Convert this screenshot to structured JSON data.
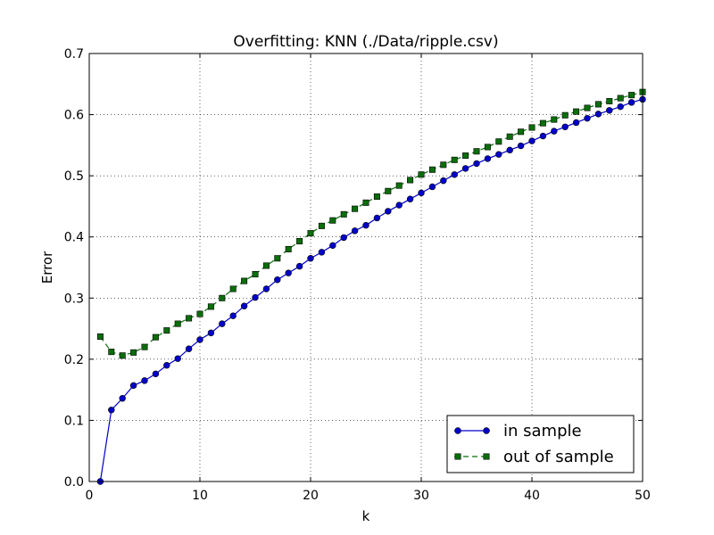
{
  "chart_data": {
    "type": "line",
    "title": "Overfitting: KNN (./Data/ripple.csv)",
    "xlabel": "k",
    "ylabel": "Error",
    "xlim": [
      0,
      50
    ],
    "ylim": [
      0.0,
      0.7
    ],
    "xticks": [
      0,
      10,
      20,
      30,
      40,
      50
    ],
    "yticks": [
      0.0,
      0.1,
      0.2,
      0.3,
      0.4,
      0.5,
      0.6,
      0.7
    ],
    "ytick_labels": [
      "0.0",
      "0.1",
      "0.2",
      "0.3",
      "0.4",
      "0.5",
      "0.6",
      "0.7"
    ],
    "grid": true,
    "legend_position": "lower-right",
    "x": [
      1,
      2,
      3,
      4,
      5,
      6,
      7,
      8,
      9,
      10,
      11,
      12,
      13,
      14,
      15,
      16,
      17,
      18,
      19,
      20,
      21,
      22,
      23,
      24,
      25,
      26,
      27,
      28,
      29,
      30,
      31,
      32,
      33,
      34,
      35,
      36,
      37,
      38,
      39,
      40,
      41,
      42,
      43,
      44,
      45,
      46,
      47,
      48,
      49,
      50
    ],
    "series": [
      {
        "name": "in sample",
        "color": "#0000cc",
        "marker": "circle",
        "linestyle": "solid",
        "values": [
          0.0,
          0.117,
          0.136,
          0.157,
          0.165,
          0.176,
          0.19,
          0.201,
          0.217,
          0.232,
          0.243,
          0.258,
          0.271,
          0.287,
          0.301,
          0.315,
          0.33,
          0.341,
          0.352,
          0.365,
          0.375,
          0.386,
          0.399,
          0.41,
          0.419,
          0.431,
          0.442,
          0.452,
          0.462,
          0.472,
          0.482,
          0.492,
          0.502,
          0.512,
          0.52,
          0.528,
          0.535,
          0.542,
          0.549,
          0.557,
          0.565,
          0.573,
          0.58,
          0.587,
          0.594,
          0.601,
          0.607,
          0.613,
          0.62,
          0.625
        ]
      },
      {
        "name": "out of sample",
        "color": "#0a6e0a",
        "marker": "square",
        "linestyle": "dashed",
        "values": [
          0.237,
          0.212,
          0.206,
          0.211,
          0.22,
          0.236,
          0.247,
          0.258,
          0.267,
          0.274,
          0.286,
          0.3,
          0.315,
          0.328,
          0.339,
          0.353,
          0.365,
          0.38,
          0.393,
          0.406,
          0.418,
          0.427,
          0.437,
          0.446,
          0.456,
          0.466,
          0.475,
          0.484,
          0.493,
          0.502,
          0.51,
          0.518,
          0.526,
          0.533,
          0.54,
          0.547,
          0.556,
          0.564,
          0.572,
          0.579,
          0.586,
          0.592,
          0.599,
          0.605,
          0.611,
          0.617,
          0.622,
          0.627,
          0.632,
          0.637
        ]
      }
    ]
  }
}
